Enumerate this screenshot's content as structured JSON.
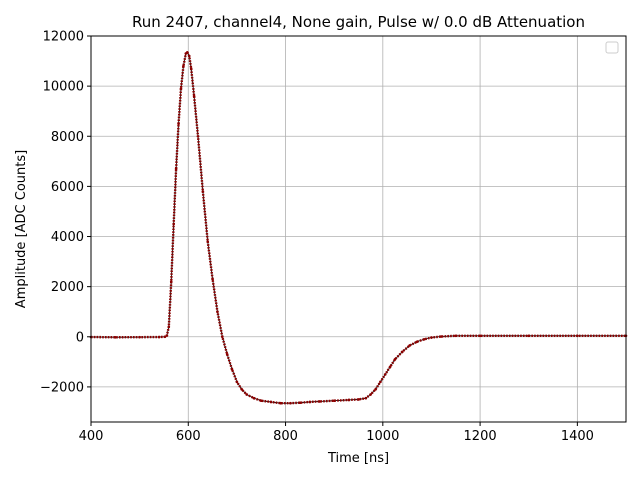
{
  "chart_data": {
    "type": "scatter",
    "title": "Run 2407, channel4, None gain, Pulse w/ 0.0 dB Attenuation",
    "xlabel": "Time [ns]",
    "ylabel": "Amplitude [ADC Counts]",
    "xlim": [
      400,
      1500
    ],
    "ylim": [
      -3400,
      12000
    ],
    "xticks": [
      400,
      600,
      800,
      1000,
      1200,
      1400
    ],
    "yticks": [
      -2000,
      0,
      2000,
      4000,
      6000,
      8000,
      10000,
      12000
    ],
    "grid": true,
    "legend": "top-right",
    "marker_color": "#8b0000",
    "line_color": "#000000",
    "series": [
      {
        "x": [
          400,
          450,
          500,
          540,
          552,
          556,
          560,
          565,
          570,
          575,
          580,
          585,
          590,
          595,
          598,
          602,
          606,
          612,
          620,
          630,
          640,
          650,
          660,
          670,
          680,
          690,
          700,
          710,
          720,
          735,
          750,
          770,
          790,
          810,
          830,
          850,
          870,
          900,
          930,
          950,
          965,
          975,
          985,
          995,
          1005,
          1015,
          1025,
          1040,
          1055,
          1070,
          1085,
          1100,
          1120,
          1150,
          1200,
          1300,
          1400,
          1500
        ],
        "y": [
          -10,
          -20,
          -15,
          -10,
          0,
          50,
          400,
          2200,
          4500,
          6700,
          8500,
          9900,
          10800,
          11300,
          11350,
          11200,
          10700,
          9600,
          8000,
          5800,
          3800,
          2300,
          1000,
          0,
          -700,
          -1300,
          -1800,
          -2100,
          -2300,
          -2450,
          -2550,
          -2600,
          -2650,
          -2650,
          -2630,
          -2600,
          -2580,
          -2550,
          -2520,
          -2500,
          -2450,
          -2300,
          -2100,
          -1800,
          -1500,
          -1200,
          -900,
          -600,
          -350,
          -200,
          -100,
          -30,
          10,
          40,
          40,
          40,
          40,
          40
        ]
      }
    ]
  }
}
